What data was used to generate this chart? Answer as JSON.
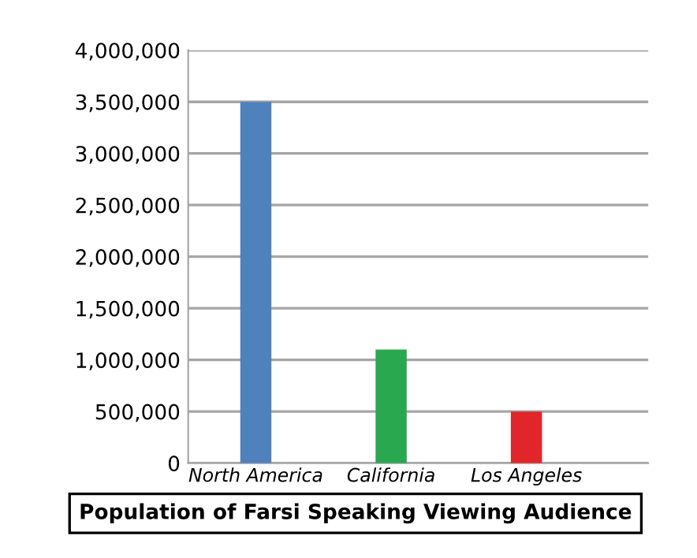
{
  "chart_data": {
    "type": "bar",
    "title": "Population of Farsi Speaking Viewing Audience",
    "categories": [
      "North America",
      "California",
      "Los Angeles"
    ],
    "values": [
      3500000,
      1100000,
      500000
    ],
    "colors": [
      "#4f81bd",
      "#2aa84f",
      "#e0262a"
    ],
    "ylim": [
      0,
      4000000
    ],
    "yticks": [
      {
        "value": 0,
        "label": "0"
      },
      {
        "value": 500000,
        "label": "500,000"
      },
      {
        "value": 1000000,
        "label": "1,000,000"
      },
      {
        "value": 1500000,
        "label": "1,500,000"
      },
      {
        "value": 2000000,
        "label": "2,000,000"
      },
      {
        "value": 2500000,
        "label": "2,500,000"
      },
      {
        "value": 3000000,
        "label": "3,000,000"
      },
      {
        "value": 3500000,
        "label": "3,500,000"
      },
      {
        "value": 4000000,
        "label": "4,000,000"
      }
    ],
    "grid": "y"
  }
}
